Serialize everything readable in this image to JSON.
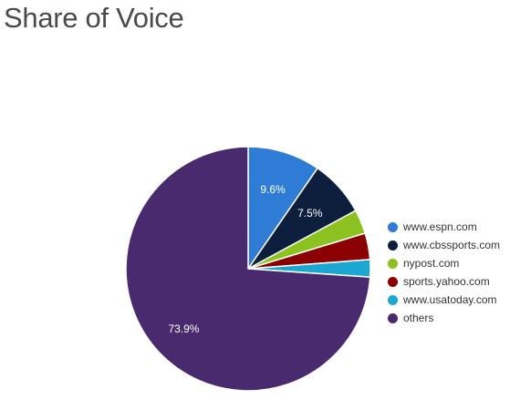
{
  "title": "Share of Voice",
  "chart_data": {
    "type": "pie",
    "title": "Share of Voice",
    "legend_position": "right",
    "slices": [
      {
        "label": "www.espn.com",
        "value": 9.6,
        "color": "#2e7cd6",
        "data_label": "9.6%"
      },
      {
        "label": "www.cbssports.com",
        "value": 7.5,
        "color": "#0d1f3c",
        "data_label": "7.5%"
      },
      {
        "label": "nypost.com",
        "value": 3.2,
        "color": "#8cc21f",
        "data_label": ""
      },
      {
        "label": "sports.yahoo.com",
        "value": 3.5,
        "color": "#8b0000",
        "data_label": ""
      },
      {
        "label": "www.usatoday.com",
        "value": 2.3,
        "color": "#1ca7d2",
        "data_label": ""
      },
      {
        "label": "others",
        "value": 73.9,
        "color": "#4a2a6e",
        "data_label": "73.9%"
      }
    ]
  }
}
